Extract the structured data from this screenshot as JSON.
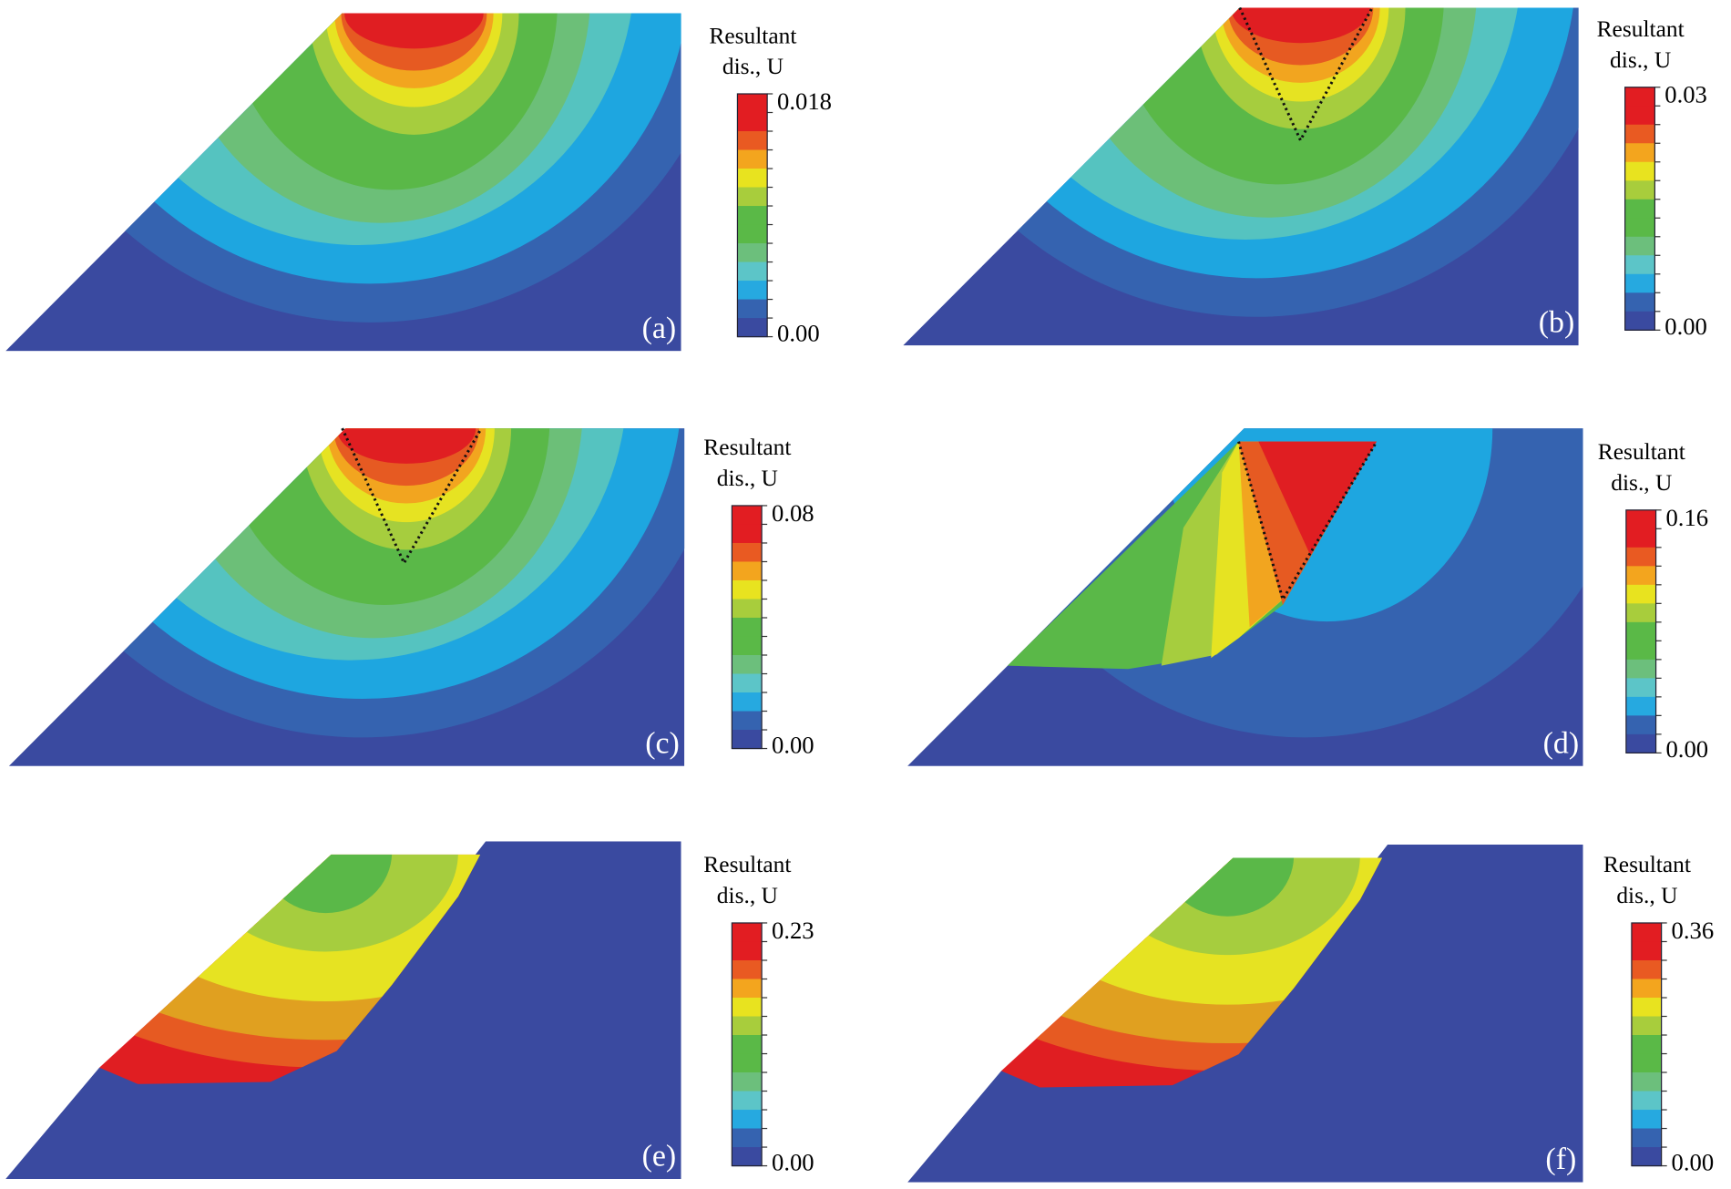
{
  "legend_title": [
    "Resultant",
    "dis., U"
  ],
  "colorbar_colors": [
    "#e21d22",
    "#e21d22",
    "#e95a22",
    "#f3a51e",
    "#e8e31f",
    "#a8cd3c",
    "#5ab947",
    "#5ab947",
    "#6cbf7c",
    "#5cc5c8",
    "#26a9e0",
    "#3563b0",
    "#3a4aa0"
  ],
  "panels": [
    {
      "label": "(a)",
      "max": "0.018",
      "min": "0.00"
    },
    {
      "label": "(b)",
      "max": "0.03",
      "min": "0.00"
    },
    {
      "label": "(c)",
      "max": "0.08",
      "min": "0.00"
    },
    {
      "label": "(d)",
      "max": "0.16",
      "min": "0.00"
    },
    {
      "label": "(e)",
      "max": "0.23",
      "min": "0.00"
    },
    {
      "label": "(f)",
      "max": "0.36",
      "min": "0.00"
    }
  ]
}
